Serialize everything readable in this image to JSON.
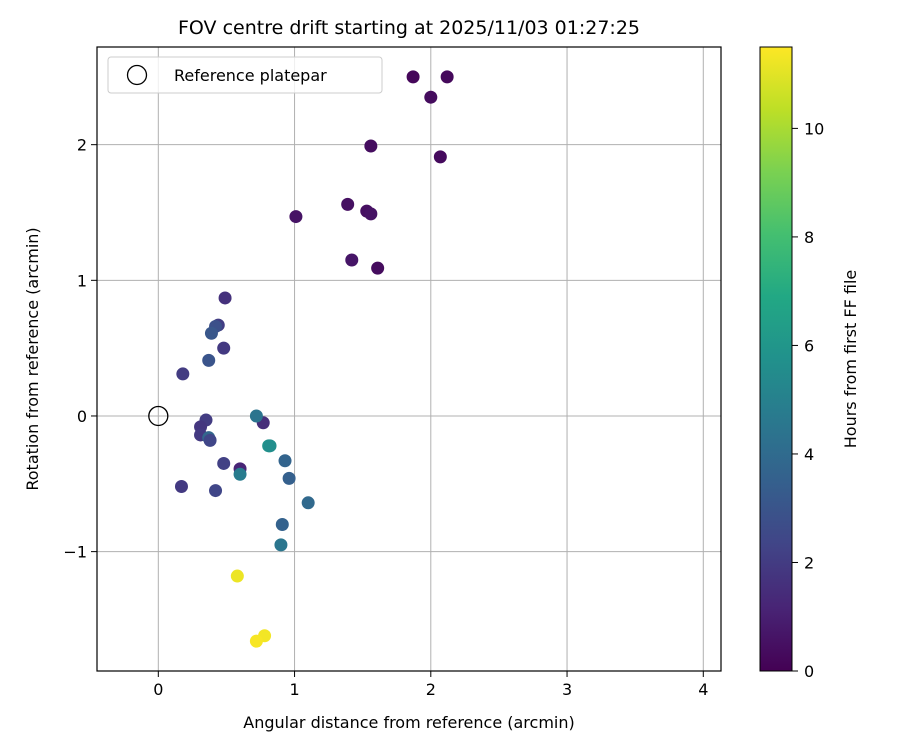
{
  "chart_data": {
    "type": "scatter",
    "title": "FOV centre drift starting at 2025/11/03 01:27:25",
    "xlabel": "Angular distance from reference (arcmin)",
    "ylabel": "Rotation from reference (arcmin)",
    "xlim": [
      -0.45,
      4.13
    ],
    "ylim": [
      -1.88,
      2.72
    ],
    "xticks": [
      0,
      1,
      2,
      3,
      4
    ],
    "xtick_labels": [
      "0",
      "1",
      "2",
      "3",
      "4"
    ],
    "yticks": [
      -1,
      0,
      1,
      2
    ],
    "ytick_labels": [
      "−1",
      "0",
      "1",
      "2"
    ],
    "grid": true,
    "legend": {
      "placement": "top-left",
      "entries": [
        {
          "label": "Reference platepar",
          "marker": "open-circle"
        }
      ]
    },
    "reference_point": {
      "x": 0,
      "y": 0
    },
    "colorbar": {
      "label": "Hours from first FF file",
      "colormap": "viridis",
      "range": [
        0,
        11.5
      ],
      "ticks": [
        0,
        2,
        4,
        6,
        8,
        10
      ],
      "tick_labels": [
        "0",
        "2",
        "4",
        "6",
        "8",
        "10"
      ]
    },
    "points": [
      {
        "x": 1.87,
        "y": 2.5,
        "h": 0.2
      },
      {
        "x": 2.12,
        "y": 2.5,
        "h": 0.25
      },
      {
        "x": 2.0,
        "y": 2.35,
        "h": 0.35
      },
      {
        "x": 1.56,
        "y": 1.99,
        "h": 0.4
      },
      {
        "x": 2.07,
        "y": 1.91,
        "h": 0.3
      },
      {
        "x": 1.39,
        "y": 1.56,
        "h": 0.5
      },
      {
        "x": 1.53,
        "y": 1.51,
        "h": 0.45
      },
      {
        "x": 1.56,
        "y": 1.49,
        "h": 0.55
      },
      {
        "x": 1.01,
        "y": 1.47,
        "h": 0.6
      },
      {
        "x": 1.42,
        "y": 1.15,
        "h": 0.65
      },
      {
        "x": 1.61,
        "y": 1.09,
        "h": 0.35
      },
      {
        "x": 0.49,
        "y": 0.87,
        "h": 1.6
      },
      {
        "x": 0.44,
        "y": 0.67,
        "h": 2.1
      },
      {
        "x": 0.42,
        "y": 0.66,
        "h": 2.8
      },
      {
        "x": 0.39,
        "y": 0.61,
        "h": 3.1
      },
      {
        "x": 0.48,
        "y": 0.5,
        "h": 1.9
      },
      {
        "x": 0.37,
        "y": 0.41,
        "h": 3.0
      },
      {
        "x": 0.18,
        "y": 0.31,
        "h": 2.0
      },
      {
        "x": 0.35,
        "y": -0.03,
        "h": 2.0
      },
      {
        "x": 0.31,
        "y": -0.08,
        "h": 1.8
      },
      {
        "x": 0.31,
        "y": -0.14,
        "h": 1.9
      },
      {
        "x": 0.37,
        "y": -0.16,
        "h": 3.8
      },
      {
        "x": 0.38,
        "y": -0.18,
        "h": 2.4
      },
      {
        "x": 0.48,
        "y": -0.35,
        "h": 2.2
      },
      {
        "x": 0.6,
        "y": -0.39,
        "h": 1.2
      },
      {
        "x": 0.6,
        "y": -0.43,
        "h": 4.8
      },
      {
        "x": 0.17,
        "y": -0.52,
        "h": 1.9
      },
      {
        "x": 0.42,
        "y": -0.55,
        "h": 2.4
      },
      {
        "x": 0.77,
        "y": -0.05,
        "h": 1.5
      },
      {
        "x": 0.72,
        "y": 0.0,
        "h": 4.4
      },
      {
        "x": 0.81,
        "y": -0.22,
        "h": 5.9
      },
      {
        "x": 0.82,
        "y": -0.22,
        "h": 5.6
      },
      {
        "x": 0.93,
        "y": -0.33,
        "h": 3.7
      },
      {
        "x": 0.96,
        "y": -0.46,
        "h": 3.5
      },
      {
        "x": 1.1,
        "y": -0.64,
        "h": 3.9
      },
      {
        "x": 0.91,
        "y": -0.8,
        "h": 3.6
      },
      {
        "x": 0.9,
        "y": -0.95,
        "h": 4.5
      },
      {
        "x": 0.58,
        "y": -1.18,
        "h": 11.2
      },
      {
        "x": 0.78,
        "y": -1.62,
        "h": 11.3
      },
      {
        "x": 0.72,
        "y": -1.66,
        "h": 11.4
      }
    ]
  }
}
